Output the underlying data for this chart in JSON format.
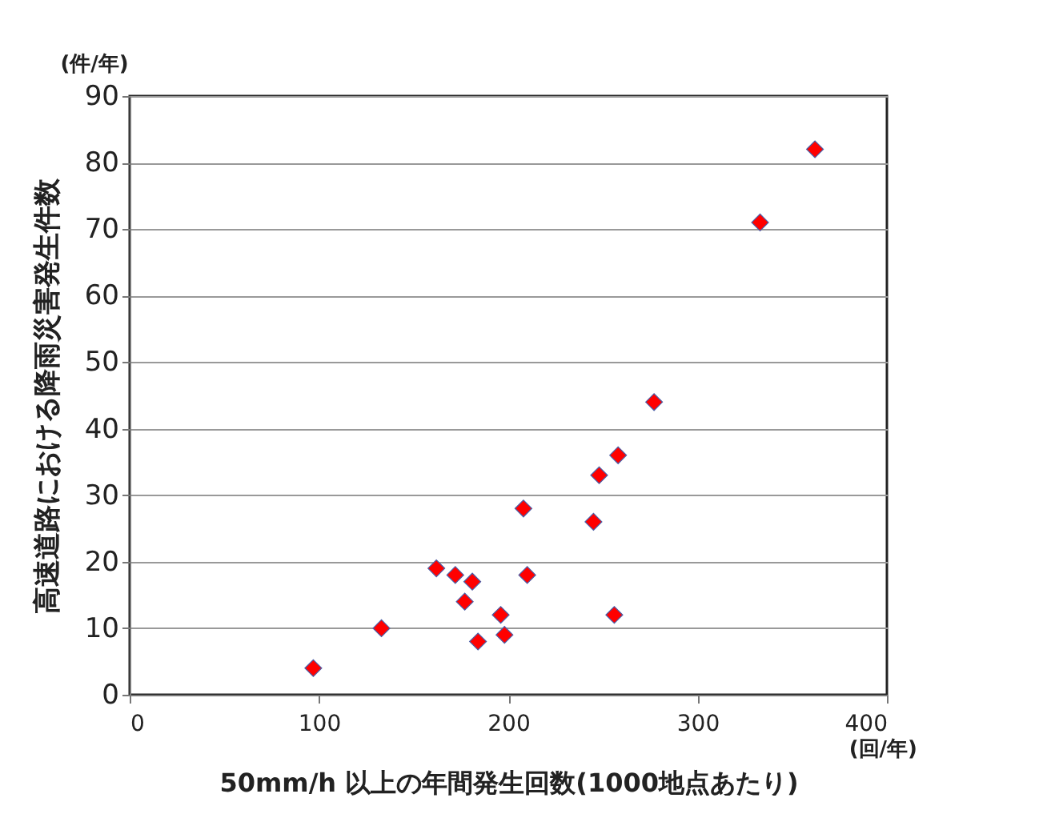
{
  "chart_data": {
    "type": "scatter",
    "xlabel": "50mm/h 以上の年間発生回数(1000地点あたり)",
    "ylabel": "高速道路における降雨災害発生件数",
    "annotations": [
      "(件/年)",
      "(回/年)"
    ],
    "x": [
      97,
      133,
      162,
      172,
      177,
      181,
      184,
      196,
      198,
      208,
      210,
      245,
      248,
      256,
      258,
      277,
      333,
      362
    ],
    "series": [
      {
        "color": "#ff0000",
        "values": [
          4,
          10,
          19,
          18,
          14,
          17,
          8,
          12,
          9,
          28,
          18,
          26,
          33,
          12,
          36,
          44,
          71,
          82
        ]
      }
    ],
    "xlim": [
      0,
      400
    ],
    "xticks": [
      0,
      100,
      200,
      300,
      400
    ],
    "ylim": [
      0,
      90
    ],
    "yticks": [
      0,
      10,
      20,
      30,
      40,
      50,
      60,
      70,
      80,
      90
    ],
    "grid": "y",
    "marker": "diamond"
  }
}
